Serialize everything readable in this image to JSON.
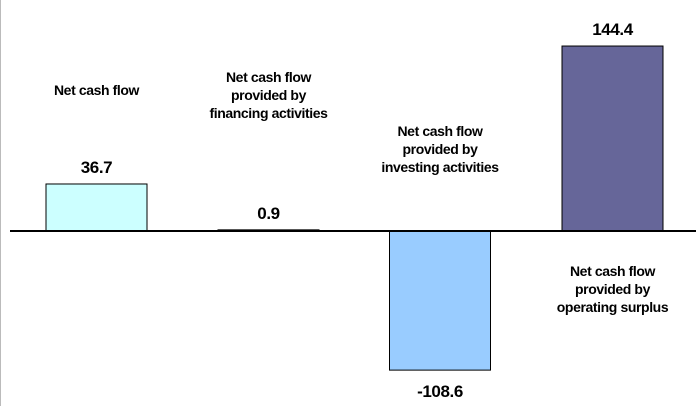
{
  "chart_data": {
    "type": "bar",
    "categories": [
      "Net cash flow",
      "Net cash flow provided by financing activities",
      "Net cash flow provided by investing activities",
      "Net cash flow provided by operating surplus"
    ],
    "values": [
      36.7,
      0.9,
      -108.6,
      144.4
    ],
    "colors": [
      "#ccffff",
      "#0000cc",
      "#99ccff",
      "#666699"
    ]
  }
}
